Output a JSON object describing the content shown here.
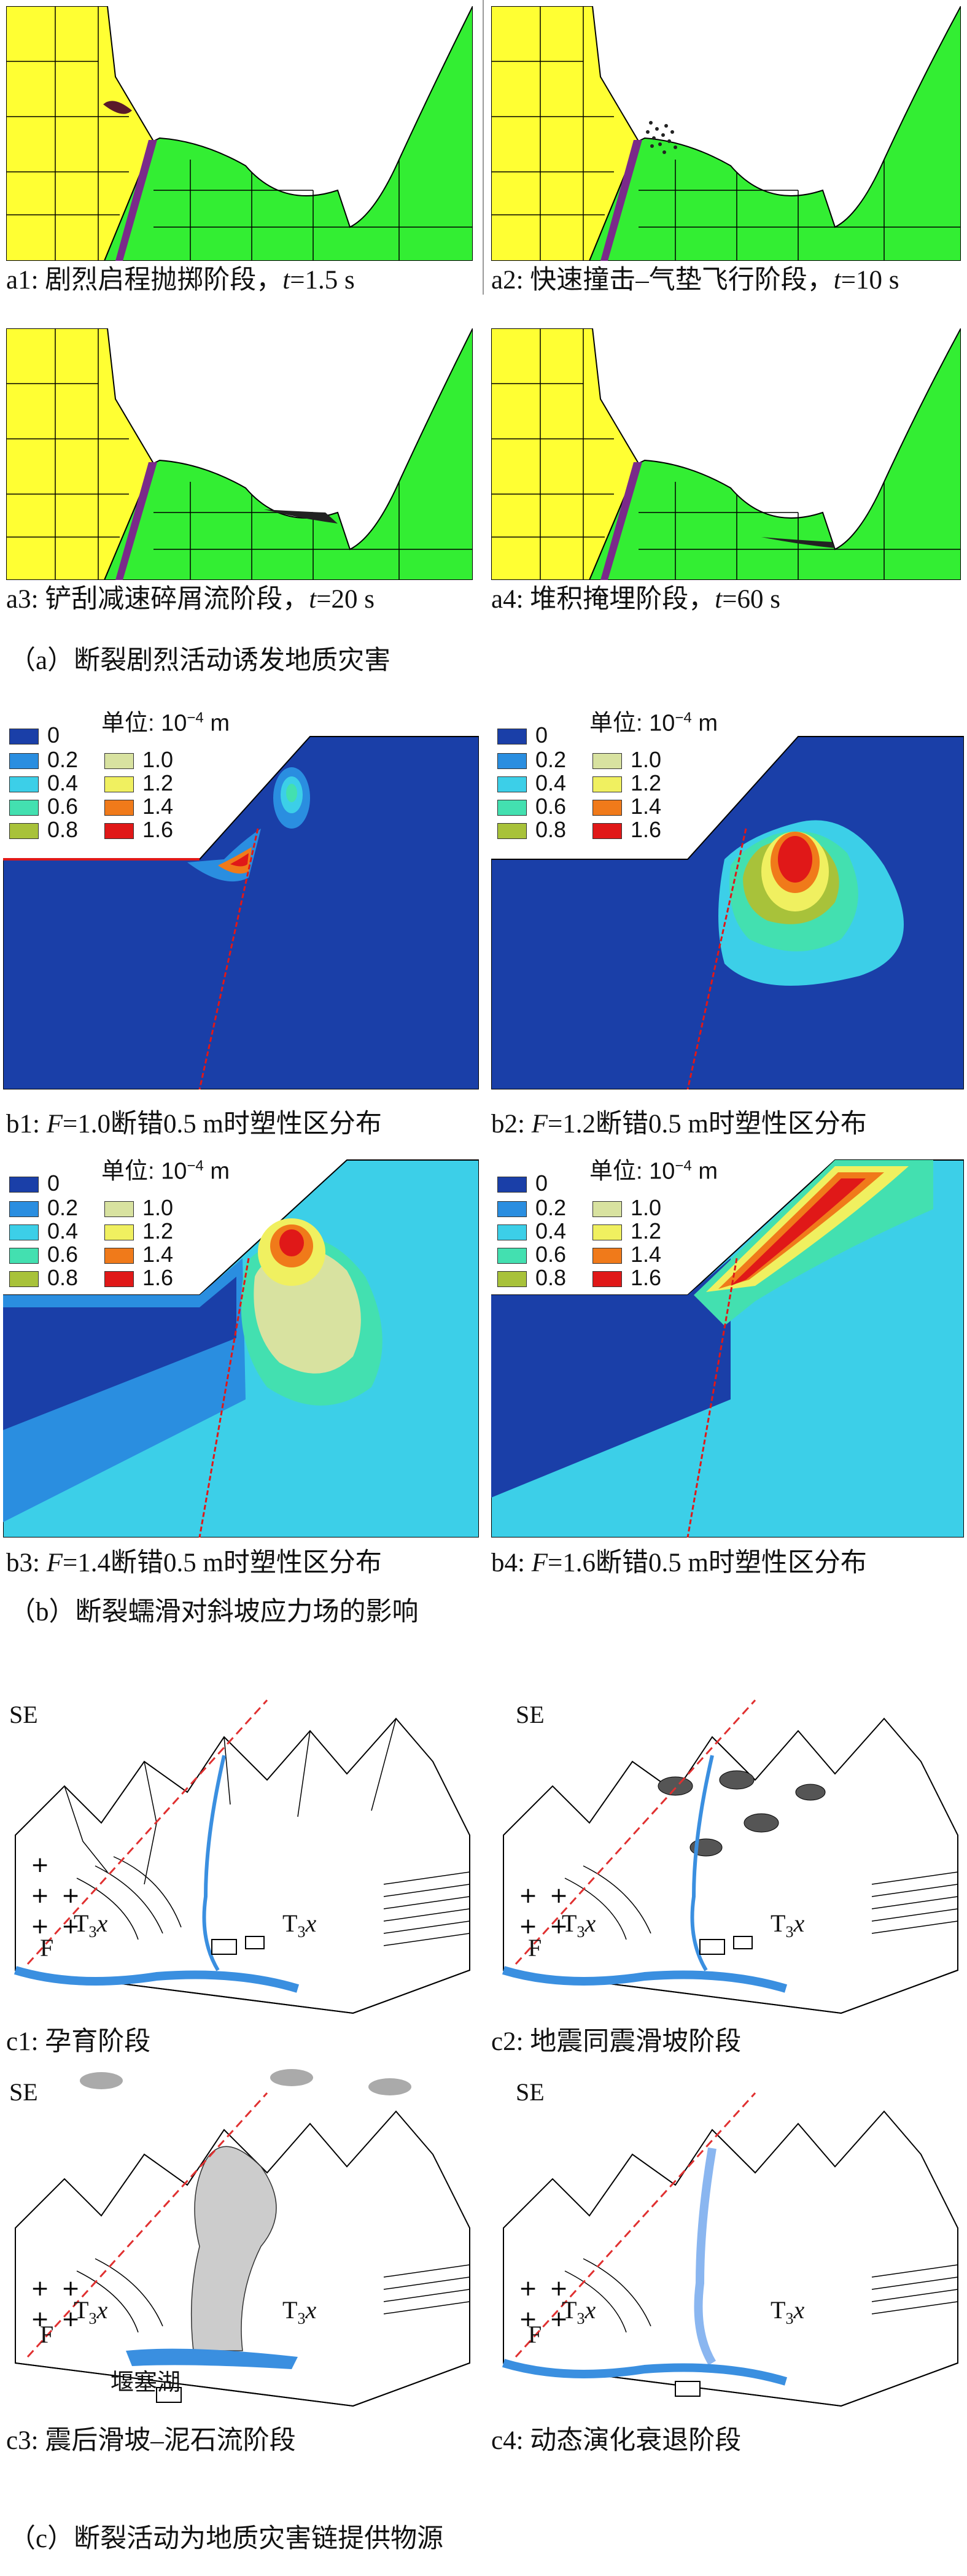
{
  "section_a": {
    "title": "（a）断裂剧烈活动诱发地质灾害",
    "panels": [
      {
        "id": "a1",
        "caption_pre": "a1: 剧烈启程抛掷阶段，",
        "t": "t",
        "caption_post": "=1.5 s"
      },
      {
        "id": "a2",
        "caption_pre": "a2: 快速撞击–气垫飞行阶段，",
        "t": "t",
        "caption_post": "=10 s"
      },
      {
        "id": "a3",
        "caption_pre": "a3: 铲刮减速碎屑流阶段，",
        "t": "t",
        "caption_post": "=20 s"
      },
      {
        "id": "a4",
        "caption_pre": "a4: 堆积掩埋阶段，",
        "t": "t",
        "caption_post": "=60 s"
      }
    ]
  },
  "section_b": {
    "title": "（b）断裂蠕滑对斜坡应力场的影响",
    "unit_label": "单位: 10",
    "unit_exp": "−4",
    "unit_suffix": " m",
    "legend_left": [
      "0",
      "0.2",
      "0.4",
      "0.6",
      "0.8"
    ],
    "legend_right": [
      "1.0",
      "1.2",
      "1.4",
      "1.6"
    ],
    "legend_colors_left": [
      "#1a3fa8",
      "#2a8ee0",
      "#3ccfe8",
      "#43e0b0",
      "#a8c23a"
    ],
    "legend_colors_right": [
      "#d8e2a0",
      "#f0f060",
      "#f07a1a",
      "#e01818"
    ],
    "panels": [
      {
        "id": "b1",
        "caption_pre": "b1: ",
        "F": "F",
        "caption_post": "=1.0断错0.5 m时塑性区分布"
      },
      {
        "id": "b2",
        "caption_pre": "b2: ",
        "F": "F",
        "caption_post": "=1.2断错0.5 m时塑性区分布"
      },
      {
        "id": "b3",
        "caption_pre": "b3: ",
        "F": "F",
        "caption_post": "=1.4断错0.5 m时塑性区分布"
      },
      {
        "id": "b4",
        "caption_pre": "b4: ",
        "F": "F",
        "caption_post": "=1.6断错0.5 m时塑性区分布"
      }
    ]
  },
  "section_c": {
    "title": "（c）断裂活动为地质灾害链提供物源",
    "direction": "SE",
    "fault_label": "F",
    "strata_label": "T",
    "strata_sub": "3",
    "strata_x": "x",
    "lake_label": "堰塞湖",
    "panels": [
      {
        "id": "c1",
        "caption": "c1: 孕育阶段"
      },
      {
        "id": "c2",
        "caption": "c2: 地震同震滑坡阶段"
      },
      {
        "id": "c3",
        "caption": "c3: 震后滑坡–泥石流阶段"
      },
      {
        "id": "c4",
        "caption": "c4: 动态演化衰退阶段"
      }
    ]
  },
  "colors": {
    "yellow": "#ffff33",
    "green": "#33ee33",
    "fault": "#7a2a8a",
    "navy": "#1a3fa8",
    "cyan": "#3ccfe8",
    "river": "#3a8fe0"
  }
}
